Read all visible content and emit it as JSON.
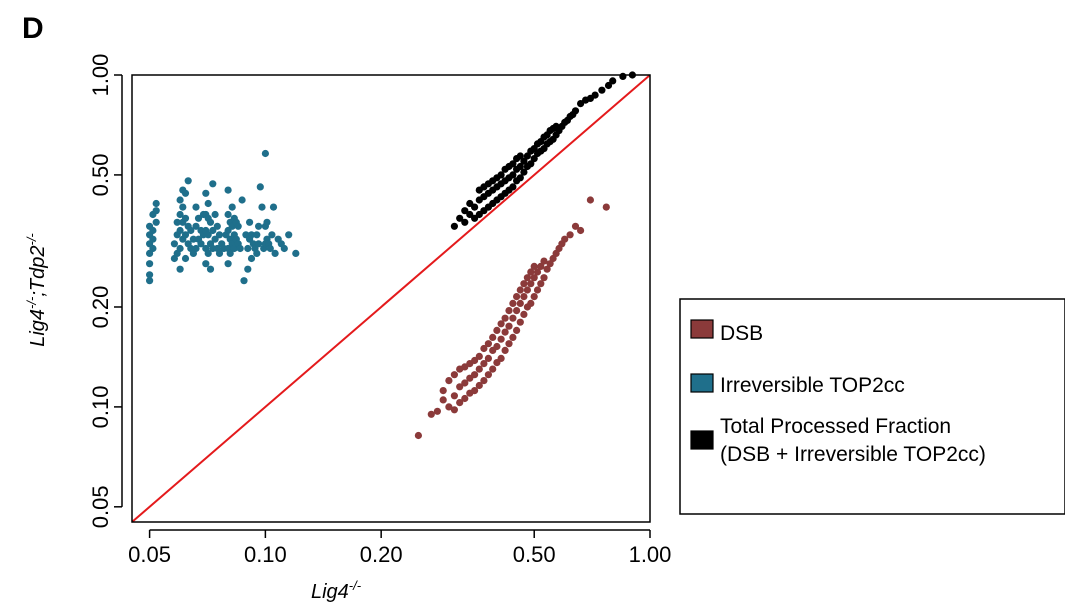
{
  "panel_label": "D",
  "chart_data": {
    "type": "scatter",
    "title": "",
    "xlabel": "Lig4",
    "xlabel_sup": "-/-",
    "ylabel_parts": [
      {
        "text": "Lig4",
        "sup": "-/-"
      },
      {
        "text": ";Tdp2",
        "sup": "-/-"
      }
    ],
    "xscale": "log",
    "yscale": "log",
    "xlim": [
      0.045,
      1.0
    ],
    "ylim": [
      0.045,
      1.0
    ],
    "xticks": [
      0.05,
      0.1,
      0.2,
      0.5,
      1.0
    ],
    "xtick_labels": [
      "0.05",
      "0.10",
      "0.20",
      "0.50",
      "1.00"
    ],
    "yticks": [
      0.05,
      0.1,
      0.2,
      0.5,
      1.0
    ],
    "ytick_labels": [
      "0.05",
      "0.10",
      "0.20",
      "0.50",
      "1.00"
    ],
    "grid": false,
    "reference_line": {
      "type": "identity",
      "color": "#e41a1c"
    },
    "legend": {
      "placement": "right",
      "entries": [
        {
          "name": "DSB",
          "color": "#8b3a3a"
        },
        {
          "name": "Irreversible TOP2cc",
          "color": "#1f6f8b"
        },
        {
          "name": "Total Processed Fraction",
          "name_line2": "(DSB + Irreversible TOP2cc)",
          "color": "#000000"
        }
      ]
    },
    "series": [
      {
        "name": "DSB",
        "color": "#8b3a3a",
        "x": [
          0.25,
          0.27,
          0.28,
          0.29,
          0.29,
          0.3,
          0.3,
          0.31,
          0.31,
          0.31,
          0.32,
          0.32,
          0.32,
          0.33,
          0.33,
          0.33,
          0.34,
          0.34,
          0.34,
          0.35,
          0.35,
          0.35,
          0.36,
          0.36,
          0.36,
          0.37,
          0.37,
          0.37,
          0.38,
          0.38,
          0.38,
          0.39,
          0.39,
          0.39,
          0.4,
          0.4,
          0.4,
          0.41,
          0.41,
          0.41,
          0.42,
          0.42,
          0.42,
          0.43,
          0.43,
          0.43,
          0.44,
          0.44,
          0.44,
          0.45,
          0.45,
          0.45,
          0.46,
          0.46,
          0.46,
          0.47,
          0.47,
          0.47,
          0.48,
          0.48,
          0.48,
          0.49,
          0.49,
          0.49,
          0.5,
          0.5,
          0.5,
          0.51,
          0.51,
          0.52,
          0.52,
          0.53,
          0.53,
          0.54,
          0.55,
          0.56,
          0.57,
          0.58,
          0.59,
          0.6,
          0.62,
          0.64,
          0.66,
          0.7,
          0.77
        ],
        "y": [
          0.082,
          0.095,
          0.097,
          0.105,
          0.112,
          0.1,
          0.12,
          0.098,
          0.108,
          0.125,
          0.103,
          0.115,
          0.13,
          0.106,
          0.118,
          0.132,
          0.11,
          0.122,
          0.135,
          0.112,
          0.125,
          0.138,
          0.116,
          0.13,
          0.142,
          0.12,
          0.135,
          0.15,
          0.125,
          0.14,
          0.155,
          0.13,
          0.148,
          0.162,
          0.136,
          0.152,
          0.17,
          0.14,
          0.16,
          0.178,
          0.148,
          0.168,
          0.185,
          0.155,
          0.175,
          0.195,
          0.162,
          0.185,
          0.205,
          0.17,
          0.195,
          0.215,
          0.18,
          0.205,
          0.225,
          0.19,
          0.215,
          0.235,
          0.2,
          0.225,
          0.245,
          0.205,
          0.235,
          0.255,
          0.215,
          0.245,
          0.265,
          0.225,
          0.255,
          0.235,
          0.265,
          0.245,
          0.275,
          0.26,
          0.27,
          0.28,
          0.29,
          0.3,
          0.31,
          0.32,
          0.33,
          0.35,
          0.34,
          0.42,
          0.4
        ]
      },
      {
        "name": "Irreversible TOP2cc",
        "color": "#1f6f8b",
        "x": [
          0.05,
          0.05,
          0.05,
          0.05,
          0.05,
          0.05,
          0.05,
          0.051,
          0.051,
          0.051,
          0.051,
          0.052,
          0.052,
          0.052,
          0.058,
          0.058,
          0.059,
          0.059,
          0.059,
          0.06,
          0.06,
          0.06,
          0.06,
          0.06,
          0.061,
          0.061,
          0.061,
          0.061,
          0.062,
          0.062,
          0.062,
          0.062,
          0.063,
          0.063,
          0.063,
          0.064,
          0.064,
          0.065,
          0.065,
          0.066,
          0.066,
          0.066,
          0.067,
          0.067,
          0.068,
          0.068,
          0.069,
          0.069,
          0.07,
          0.07,
          0.07,
          0.07,
          0.07,
          0.071,
          0.071,
          0.071,
          0.071,
          0.072,
          0.072,
          0.072,
          0.073,
          0.073,
          0.073,
          0.074,
          0.074,
          0.075,
          0.075,
          0.076,
          0.076,
          0.077,
          0.078,
          0.079,
          0.08,
          0.08,
          0.08,
          0.08,
          0.08,
          0.081,
          0.081,
          0.081,
          0.082,
          0.082,
          0.082,
          0.083,
          0.083,
          0.083,
          0.084,
          0.084,
          0.085,
          0.085,
          0.086,
          0.087,
          0.088,
          0.089,
          0.09,
          0.09,
          0.091,
          0.091,
          0.092,
          0.092,
          0.093,
          0.094,
          0.095,
          0.095,
          0.096,
          0.096,
          0.097,
          0.098,
          0.099,
          0.1,
          0.1,
          0.1,
          0.101,
          0.101,
          0.102,
          0.103,
          0.104,
          0.105,
          0.106,
          0.108,
          0.11,
          0.112,
          0.115,
          0.12
        ],
        "y": [
          0.24,
          0.25,
          0.27,
          0.29,
          0.31,
          0.33,
          0.35,
          0.3,
          0.32,
          0.34,
          0.38,
          0.36,
          0.39,
          0.41,
          0.28,
          0.31,
          0.29,
          0.33,
          0.36,
          0.26,
          0.3,
          0.34,
          0.38,
          0.42,
          0.32,
          0.36,
          0.4,
          0.45,
          0.28,
          0.33,
          0.37,
          0.44,
          0.31,
          0.35,
          0.48,
          0.3,
          0.34,
          0.29,
          0.32,
          0.3,
          0.35,
          0.4,
          0.32,
          0.37,
          0.31,
          0.34,
          0.33,
          0.38,
          0.27,
          0.3,
          0.34,
          0.38,
          0.44,
          0.29,
          0.33,
          0.37,
          0.41,
          0.26,
          0.31,
          0.36,
          0.3,
          0.34,
          0.47,
          0.32,
          0.38,
          0.3,
          0.35,
          0.29,
          0.33,
          0.31,
          0.3,
          0.33,
          0.27,
          0.3,
          0.34,
          0.38,
          0.45,
          0.29,
          0.32,
          0.36,
          0.31,
          0.35,
          0.4,
          0.3,
          0.33,
          0.37,
          0.32,
          0.36,
          0.31,
          0.35,
          0.3,
          0.42,
          0.24,
          0.33,
          0.26,
          0.3,
          0.32,
          0.36,
          0.28,
          0.33,
          0.31,
          0.3,
          0.29,
          0.33,
          0.31,
          0.35,
          0.46,
          0.4,
          0.3,
          0.31,
          0.35,
          0.58,
          0.32,
          0.36,
          0.31,
          0.3,
          0.33,
          0.4,
          0.29,
          0.32,
          0.31,
          0.3,
          0.33,
          0.29
        ]
      },
      {
        "name": "Total Processed Fraction",
        "color": "#000000",
        "x": [
          0.31,
          0.32,
          0.33,
          0.33,
          0.34,
          0.34,
          0.35,
          0.35,
          0.36,
          0.36,
          0.36,
          0.37,
          0.37,
          0.37,
          0.38,
          0.38,
          0.38,
          0.39,
          0.39,
          0.39,
          0.4,
          0.4,
          0.4,
          0.41,
          0.41,
          0.41,
          0.42,
          0.42,
          0.42,
          0.43,
          0.43,
          0.43,
          0.44,
          0.44,
          0.44,
          0.45,
          0.45,
          0.45,
          0.46,
          0.46,
          0.46,
          0.47,
          0.47,
          0.48,
          0.48,
          0.49,
          0.49,
          0.5,
          0.5,
          0.51,
          0.51,
          0.52,
          0.52,
          0.53,
          0.53,
          0.54,
          0.54,
          0.55,
          0.55,
          0.56,
          0.56,
          0.57,
          0.57,
          0.58,
          0.59,
          0.6,
          0.61,
          0.62,
          0.63,
          0.64,
          0.66,
          0.68,
          0.7,
          0.72,
          0.75,
          0.78,
          0.8,
          0.85,
          0.9
        ],
        "y": [
          0.35,
          0.37,
          0.36,
          0.39,
          0.38,
          0.41,
          0.37,
          0.4,
          0.38,
          0.42,
          0.45,
          0.39,
          0.43,
          0.46,
          0.4,
          0.44,
          0.47,
          0.41,
          0.45,
          0.48,
          0.42,
          0.46,
          0.49,
          0.43,
          0.47,
          0.5,
          0.44,
          0.48,
          0.52,
          0.45,
          0.49,
          0.53,
          0.46,
          0.5,
          0.54,
          0.48,
          0.52,
          0.56,
          0.49,
          0.53,
          0.57,
          0.51,
          0.55,
          0.53,
          0.57,
          0.54,
          0.59,
          0.56,
          0.6,
          0.58,
          0.62,
          0.59,
          0.63,
          0.6,
          0.65,
          0.62,
          0.66,
          0.63,
          0.68,
          0.64,
          0.69,
          0.66,
          0.7,
          0.68,
          0.7,
          0.72,
          0.73,
          0.75,
          0.76,
          0.78,
          0.82,
          0.84,
          0.85,
          0.87,
          0.9,
          0.93,
          0.96,
          0.99,
          1.0
        ]
      }
    ]
  }
}
